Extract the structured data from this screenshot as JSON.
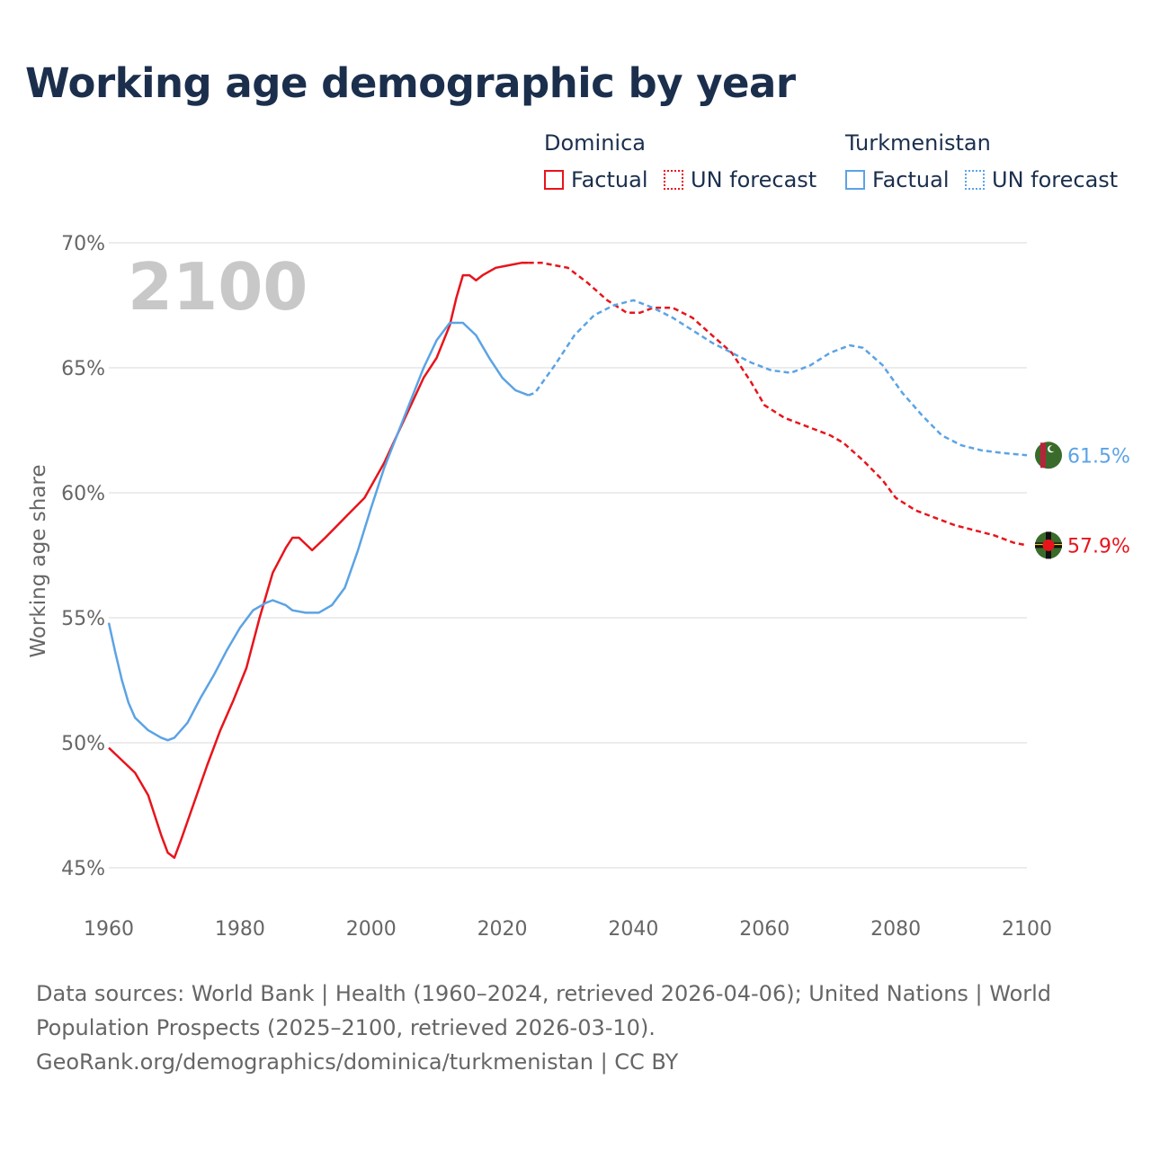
{
  "title": "Working age demographic by year",
  "legend": {
    "groups": [
      {
        "name": "Dominica",
        "factual": "Factual",
        "forecast": "UN forecast",
        "color": "#e8141b"
      },
      {
        "name": "Turkmenistan",
        "factual": "Factual",
        "forecast": "UN forecast",
        "color": "#5ba3e5"
      }
    ]
  },
  "chart_data": {
    "type": "line",
    "title": "Working age demographic by year",
    "ylabel": "Working age share",
    "xlabel": "",
    "xlim": [
      1960,
      2100
    ],
    "ylim": [
      45,
      70
    ],
    "x_ticks": [
      "1960",
      "1980",
      "2000",
      "2020",
      "2040",
      "2060",
      "2080",
      "2100"
    ],
    "y_ticks": [
      "45%",
      "50%",
      "55%",
      "60%",
      "65%",
      "70%"
    ],
    "current_year": "2100",
    "factual_end_year": 2024,
    "series": [
      {
        "name": "Dominica",
        "color": "#e8141b",
        "end_label": "57.9%",
        "end_icon": "dominica-flag-icon",
        "points": [
          [
            1960,
            49.8
          ],
          [
            1962,
            49.3
          ],
          [
            1964,
            48.8
          ],
          [
            1966,
            47.9
          ],
          [
            1968,
            46.3
          ],
          [
            1969,
            45.6
          ],
          [
            1970,
            45.4
          ],
          [
            1971,
            46.1
          ],
          [
            1973,
            47.6
          ],
          [
            1975,
            49.1
          ],
          [
            1977,
            50.5
          ],
          [
            1979,
            51.7
          ],
          [
            1981,
            53.0
          ],
          [
            1983,
            55.0
          ],
          [
            1985,
            56.8
          ],
          [
            1987,
            57.8
          ],
          [
            1988,
            58.2
          ],
          [
            1989,
            58.2
          ],
          [
            1991,
            57.7
          ],
          [
            1993,
            58.2
          ],
          [
            1996,
            59.0
          ],
          [
            1999,
            59.8
          ],
          [
            2002,
            61.2
          ],
          [
            2005,
            62.9
          ],
          [
            2008,
            64.6
          ],
          [
            2010,
            65.4
          ],
          [
            2012,
            66.7
          ],
          [
            2013,
            67.8
          ],
          [
            2014,
            68.7
          ],
          [
            2015,
            68.7
          ],
          [
            2016,
            68.5
          ],
          [
            2017,
            68.7
          ],
          [
            2019,
            69.0
          ],
          [
            2021,
            69.1
          ],
          [
            2023,
            69.2
          ],
          [
            2024,
            69.2
          ],
          [
            2026,
            69.2
          ],
          [
            2028,
            69.1
          ],
          [
            2030,
            69.0
          ],
          [
            2033,
            68.4
          ],
          [
            2036,
            67.7
          ],
          [
            2039,
            67.2
          ],
          [
            2041,
            67.2
          ],
          [
            2043,
            67.4
          ],
          [
            2046,
            67.4
          ],
          [
            2049,
            67.0
          ],
          [
            2052,
            66.3
          ],
          [
            2055,
            65.6
          ],
          [
            2058,
            64.4
          ],
          [
            2060,
            63.5
          ],
          [
            2063,
            63.0
          ],
          [
            2066,
            62.7
          ],
          [
            2068,
            62.5
          ],
          [
            2070,
            62.3
          ],
          [
            2072,
            62.0
          ],
          [
            2075,
            61.3
          ],
          [
            2078,
            60.5
          ],
          [
            2080,
            59.8
          ],
          [
            2083,
            59.3
          ],
          [
            2086,
            59.0
          ],
          [
            2089,
            58.7
          ],
          [
            2092,
            58.5
          ],
          [
            2095,
            58.3
          ],
          [
            2098,
            58.0
          ],
          [
            2100,
            57.9
          ]
        ]
      },
      {
        "name": "Turkmenistan",
        "color": "#5ba3e5",
        "end_label": "61.5%",
        "end_icon": "turkmenistan-flag-icon",
        "points": [
          [
            1960,
            54.8
          ],
          [
            1961,
            53.6
          ],
          [
            1962,
            52.5
          ],
          [
            1963,
            51.6
          ],
          [
            1964,
            51.0
          ],
          [
            1966,
            50.5
          ],
          [
            1968,
            50.2
          ],
          [
            1969,
            50.1
          ],
          [
            1970,
            50.2
          ],
          [
            1972,
            50.8
          ],
          [
            1974,
            51.8
          ],
          [
            1976,
            52.7
          ],
          [
            1978,
            53.7
          ],
          [
            1980,
            54.6
          ],
          [
            1982,
            55.3
          ],
          [
            1984,
            55.6
          ],
          [
            1985,
            55.7
          ],
          [
            1987,
            55.5
          ],
          [
            1988,
            55.3
          ],
          [
            1990,
            55.2
          ],
          [
            1992,
            55.2
          ],
          [
            1994,
            55.5
          ],
          [
            1996,
            56.2
          ],
          [
            1998,
            57.7
          ],
          [
            2000,
            59.4
          ],
          [
            2002,
            61.0
          ],
          [
            2005,
            63.0
          ],
          [
            2008,
            65.0
          ],
          [
            2010,
            66.1
          ],
          [
            2012,
            66.8
          ],
          [
            2014,
            66.8
          ],
          [
            2016,
            66.3
          ],
          [
            2018,
            65.4
          ],
          [
            2020,
            64.6
          ],
          [
            2022,
            64.1
          ],
          [
            2024,
            63.9
          ],
          [
            2025,
            64.0
          ],
          [
            2028,
            65.1
          ],
          [
            2031,
            66.3
          ],
          [
            2034,
            67.1
          ],
          [
            2037,
            67.5
          ],
          [
            2040,
            67.7
          ],
          [
            2043,
            67.4
          ],
          [
            2046,
            67.0
          ],
          [
            2049,
            66.5
          ],
          [
            2052,
            66.0
          ],
          [
            2055,
            65.6
          ],
          [
            2058,
            65.2
          ],
          [
            2061,
            64.9
          ],
          [
            2064,
            64.8
          ],
          [
            2067,
            65.1
          ],
          [
            2070,
            65.6
          ],
          [
            2073,
            65.9
          ],
          [
            2075,
            65.8
          ],
          [
            2078,
            65.1
          ],
          [
            2081,
            64.0
          ],
          [
            2084,
            63.1
          ],
          [
            2087,
            62.3
          ],
          [
            2090,
            61.9
          ],
          [
            2093,
            61.7
          ],
          [
            2096,
            61.6
          ],
          [
            2100,
            61.5
          ]
        ]
      }
    ]
  },
  "footer": {
    "line1": "Data sources: World Bank | Health (1960–2024, retrieved 2026-04-06); United Nations | World",
    "line2": "Population Prospects (2025–2100, retrieved 2026-03-10).",
    "line3": "GeoRank.org/demographics/dominica/turkmenistan | CC BY"
  }
}
